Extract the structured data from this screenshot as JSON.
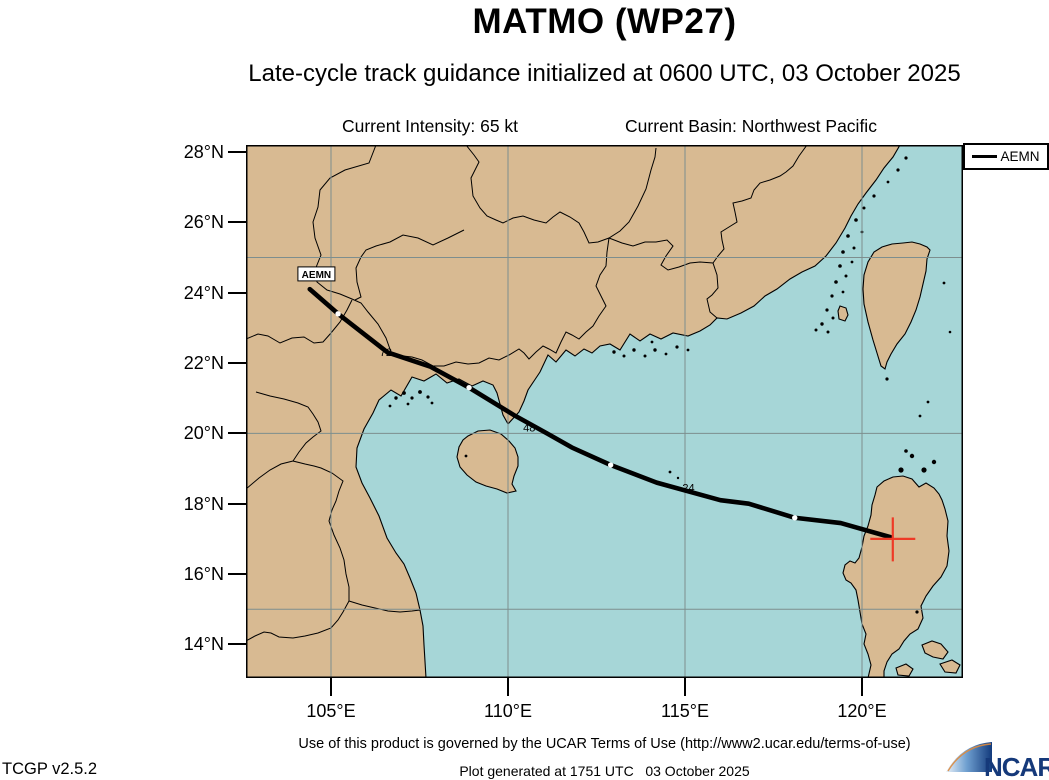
{
  "header": {
    "title": "MATMO (WP27)",
    "subtitle": "Late-cycle track guidance initialized at 0600 UTC, 03 October 2025",
    "current_intensity": "Current Intensity: 65 kt",
    "current_basin": "Current Basin: Northwest Pacific"
  },
  "legend": {
    "model_label": "AEMN"
  },
  "axes": {
    "y_labels": [
      "28°N",
      "26°N",
      "24°N",
      "22°N",
      "20°N",
      "18°N",
      "16°N",
      "14°N"
    ],
    "x_labels": [
      "105°E",
      "110°E",
      "115°E",
      "120°E"
    ]
  },
  "chart_data": {
    "type": "map-track",
    "title": "MATMO (WP27) late-cycle track guidance",
    "model": "AEMN",
    "lon_range": [
      102.6,
      122.85
    ],
    "lat_range": [
      13.0,
      28.2
    ],
    "gridlines": {
      "meridians": [
        105,
        110,
        115,
        120
      ],
      "parallels": [
        15,
        20,
        25
      ]
    },
    "track_points_lon_lat": [
      [
        104.4,
        24.1
      ],
      [
        105.2,
        23.4
      ],
      [
        106.6,
        22.3
      ],
      [
        107.8,
        21.9
      ],
      [
        108.9,
        21.3
      ],
      [
        110.2,
        20.5
      ],
      [
        111.1,
        20.0
      ],
      [
        111.8,
        19.6
      ],
      [
        112.9,
        19.1
      ],
      [
        114.2,
        18.6
      ],
      [
        116.0,
        18.1
      ],
      [
        116.8,
        18.0
      ],
      [
        118.1,
        17.6
      ],
      [
        119.4,
        17.45
      ],
      [
        120.8,
        17.05
      ]
    ],
    "waypoint_dots_lon_lat": [
      [
        105.2,
        23.4
      ],
      [
        108.9,
        21.3
      ],
      [
        112.9,
        19.1
      ],
      [
        118.1,
        17.6
      ]
    ],
    "hour_labels": [
      {
        "text": "72",
        "lon": 106.55,
        "lat": 22.2
      },
      {
        "text": "48",
        "lon": 110.6,
        "lat": 20.05
      },
      {
        "text": "24",
        "lon": 115.1,
        "lat": 18.35
      }
    ],
    "model_label": {
      "text": "AEMN",
      "lon": 104.15,
      "lat": 24.42
    },
    "current_position": {
      "lon": 120.87,
      "lat": 17.0
    }
  },
  "colors": {
    "land": "#d8ba92",
    "sea": "#a6d6d7",
    "grid": "#7d8e8e",
    "track": "#000000",
    "current_marker": "#ee3a26",
    "ncar_navy": "#15397a"
  },
  "footer": {
    "terms": "Use of this product is governed by the UCAR Terms of Use (http://www2.ucar.edu/terms-of-use)",
    "version": "TCGP v2.5.2",
    "generated": "Plot generated at 1751 UTC   03 October 2025",
    "logo_text": "NCAR"
  }
}
